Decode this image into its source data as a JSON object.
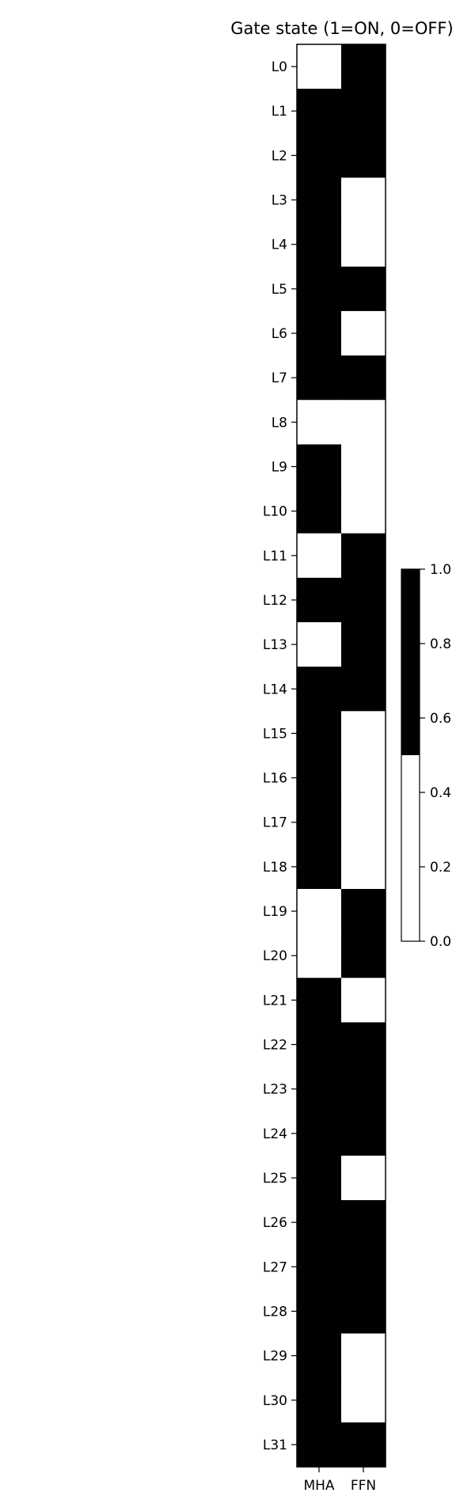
{
  "chart_data": {
    "type": "heatmap",
    "title": "Gate state (1=ON, 0=OFF)",
    "x_categories": [
      "MHA",
      "FFN"
    ],
    "y_categories": [
      "L0",
      "L1",
      "L2",
      "L3",
      "L4",
      "L5",
      "L6",
      "L7",
      "L8",
      "L9",
      "L10",
      "L11",
      "L12",
      "L13",
      "L14",
      "L15",
      "L16",
      "L17",
      "L18",
      "L19",
      "L20",
      "L21",
      "L22",
      "L23",
      "L24",
      "L25",
      "L26",
      "L27",
      "L28",
      "L29",
      "L30",
      "L31"
    ],
    "values": [
      [
        0,
        1
      ],
      [
        1,
        1
      ],
      [
        1,
        1
      ],
      [
        1,
        0
      ],
      [
        1,
        0
      ],
      [
        1,
        1
      ],
      [
        1,
        0
      ],
      [
        1,
        1
      ],
      [
        0,
        0
      ],
      [
        1,
        0
      ],
      [
        1,
        0
      ],
      [
        0,
        1
      ],
      [
        1,
        1
      ],
      [
        0,
        1
      ],
      [
        1,
        1
      ],
      [
        1,
        0
      ],
      [
        1,
        0
      ],
      [
        1,
        0
      ],
      [
        1,
        0
      ],
      [
        0,
        1
      ],
      [
        0,
        1
      ],
      [
        1,
        0
      ],
      [
        1,
        1
      ],
      [
        1,
        1
      ],
      [
        1,
        1
      ],
      [
        1,
        0
      ],
      [
        1,
        1
      ],
      [
        1,
        1
      ],
      [
        1,
        1
      ],
      [
        1,
        0
      ],
      [
        1,
        0
      ],
      [
        1,
        1
      ]
    ],
    "colormap": {
      "0": "#ffffff",
      "1": "#000000"
    },
    "colorbar": {
      "range": [
        0.0,
        1.0
      ],
      "ticks": [
        "0.0",
        "0.2",
        "0.4",
        "0.6",
        "0.8",
        "1.0"
      ]
    },
    "xlabel": "",
    "ylabel": "",
    "grid": false
  }
}
